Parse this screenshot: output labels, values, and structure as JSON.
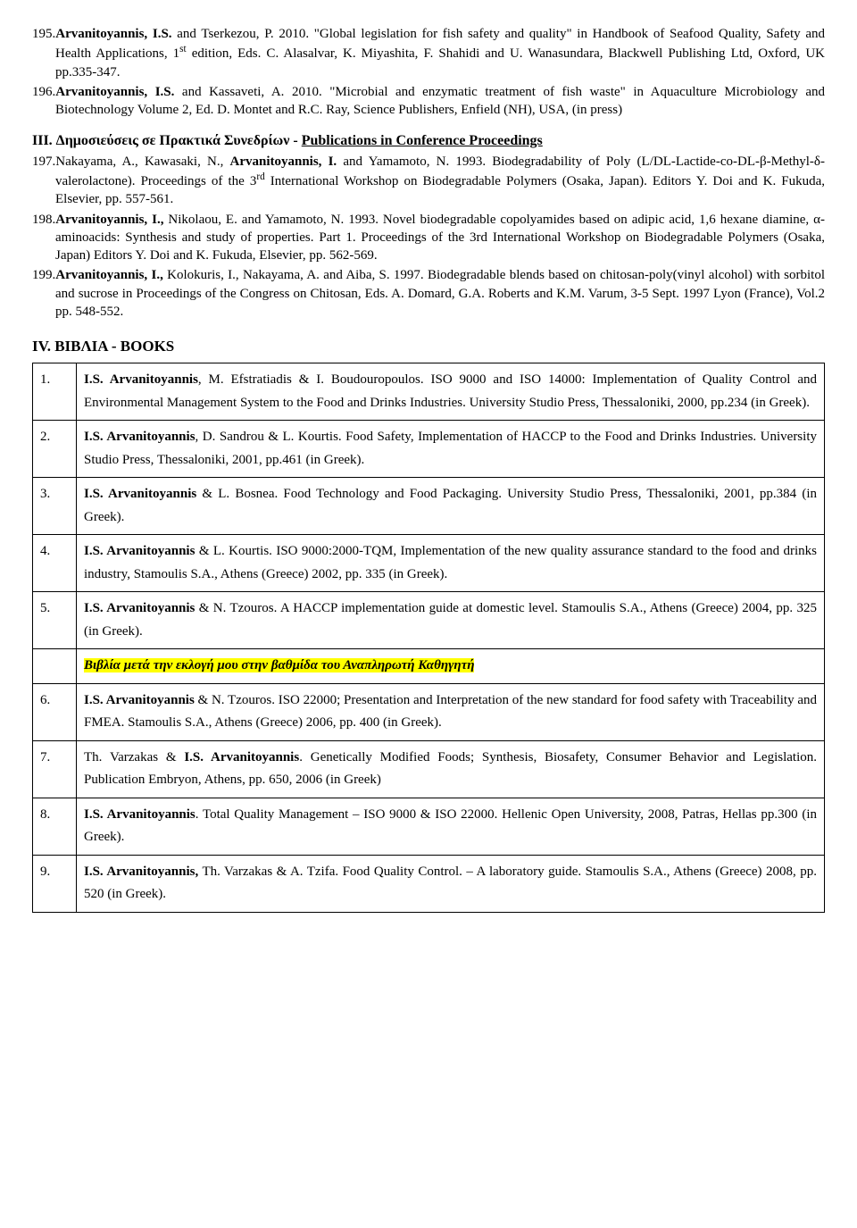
{
  "refs": {
    "r195": {
      "num": "195.",
      "lead_bold": "Arvanitoyannis, I.S.",
      "rest": " and Tserkezou, P. 2010. \"Global legislation for fish safety and quality\" in Handbook of Seafood Quality, Safety and Health Applications, 1",
      "sup": "st",
      "rest2": " edition, Eds. C. Alasalvar, K. Miyashita, F. Shahidi and U. Wanasundara, Blackwell Publishing Ltd, Oxford, UK pp.335-347."
    },
    "r196": {
      "num": "196.",
      "lead_bold": "Arvanitoyannis, I.S.",
      "rest": " and Kassaveti, A. 2010. \"Microbial and enzymatic treatment of fish waste\" in Aquaculture Microbiology and Biotechnology Volume 2, Ed. D. Montet and R.C. Ray, Science Publishers, Enfield (NH), USA, (in press)"
    }
  },
  "section3": {
    "prefix": "III. Δημοσιεύσεις σε Πρακτικά Συνεδρίων - ",
    "underline": "Publications in Conference Proceedings"
  },
  "conf": {
    "r197": {
      "num": "197.",
      "pre": "Nakayama, A., Kawasaki, N., ",
      "bold": "Arvanitoyannis, I.",
      "post": " and Yamamoto, N. 1993. Biodegradability of Poly (L/DL-Lactide-co-DL-β-Methyl-δ-valerolactone). Proceedings of the 3",
      "sup": "rd",
      "post2": " International Workshop on Biodegradable Polymers (Osaka, Japan). Editors Y. Doi and K. Fukuda, Elsevier, pp. 557-561."
    },
    "r198": {
      "num": "198.",
      "bold": "Arvanitoyannis, I.,",
      "post": " Nikolaou, E. and Yamamoto, N. 1993. Novel biodegradable copolyamides based on adipic acid, 1,6 hexane diamine, α-aminoacids: Synthesis and study of properties. Part 1. Proceedings of the 3rd International Workshop on Biodegradable Polymers (Osaka, Japan) Editors Y. Doi and K. Fukuda, Elsevier, pp. 562-569."
    },
    "r199": {
      "num": "199.",
      "bold": "Arvanitoyannis, I.,",
      "post": " Kolokuris, I., Nakayama, A. and Aiba, S. 1997. Biodegradable blends based on chitosan-poly(vinyl alcohol) with sorbitol and sucrose in Proceedings of the Congress on Chitosan, Eds. A. Domard, G.A. Roberts and K.M. Varum, 3-5 Sept. 1997 Lyon (France), Vol.2 pp. 548-552."
    }
  },
  "booksHeading": "IV. ΒΙΒΛΙΑ - BOOKS",
  "highlightRow": "Βιβλία μετά την εκλογή μου στην βαθμίδα του Αναπληρωτή Καθηγητή",
  "books": [
    {
      "n": "1.",
      "bold": "I.S. Arvanitoyannis",
      "rest": ", M. Efstratiadis & I. Boudouropoulos. ISO 9000 and ISO 14000: Implementation of Quality Control and Environmental Management System to the Food and Drinks Industries. University Studio Press, Thessaloniki, 2000, pp.234 (in Greek)."
    },
    {
      "n": "2.",
      "bold": "I.S. Arvanitoyannis",
      "rest": ", D. Sandrou & L. Kourtis. Food Safety, Implementation of HACCP to the Food and Drinks Industries. University Studio Press, Thessaloniki, 2001, pp.461 (in Greek)."
    },
    {
      "n": "3.",
      "bold": "I.S. Arvanitoyannis",
      "rest": " & L. Bosnea. Food Technology and Food Packaging. University Studio Press, Thessaloniki, 2001, pp.384 (in Greek)."
    },
    {
      "n": "4.",
      "bold": "I.S. Arvanitoyannis",
      "rest": " & L. Kourtis. ISO 9000:2000-TQM, Implementation of the new quality assurance standard to the food and drinks industry, Stamoulis S.A., Athens (Greece) 2002, pp. 335 (in Greek)."
    },
    {
      "n": "5.",
      "bold": "I.S. Arvanitoyannis",
      "rest": " & N. Tzouros. A HACCP implementation guide at domestic level. Stamoulis S.A., Athens (Greece) 2004, pp. 325 (in Greek)."
    },
    {
      "n": "6.",
      "bold": "I.S. Arvanitoyannis",
      "rest": " & N. Tzouros. ISO 22000; Presentation and Interpretation of the new standard for food safety with Traceability and FMEA. Stamoulis S.A., Athens (Greece) 2006, pp. 400 (in Greek)."
    },
    {
      "n": "7.",
      "pre": "Th. Varzakas & ",
      "bold": "I.S. Arvanitoyannis",
      "rest": ". Genetically Modified Foods; Synthesis, Biosafety, Consumer Behavior and Legislation. Publication Embryon, Athens, pp. 650, 2006 (in Greek)"
    },
    {
      "n": "8.",
      "bold": "I.S. Arvanitoyannis",
      "rest": ". Total Quality Management – ISO 9000 & ISO 22000. Hellenic Open University, 2008, Patras, Hellas pp.300 (in Greek)."
    },
    {
      "n": "9.",
      "bold": "I.S. Arvanitoyannis,",
      "rest": " Th. Varzakas & A. Tzifa. Food Quality Control. – A laboratory guide. Stamoulis S.A., Athens (Greece) 2008, pp. 520 (in Greek)."
    }
  ]
}
